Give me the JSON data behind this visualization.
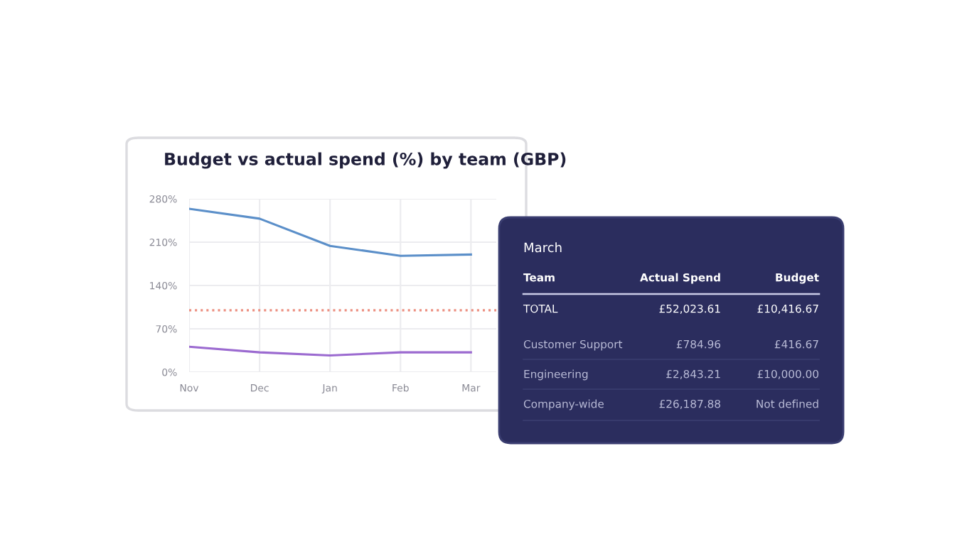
{
  "chart_data": [
    {
      "type": "line",
      "title": "Budget vs actual spend (%) by team (GBP)",
      "categories": [
        "Nov",
        "Dec",
        "Jan",
        "Feb",
        "Mar"
      ],
      "series": [
        {
          "color": "#5b8fc9",
          "values": [
            264,
            248,
            204,
            188,
            190
          ]
        },
        {
          "color": "#9b6ad0",
          "values": [
            41,
            32,
            27,
            32,
            32
          ]
        }
      ],
      "ylim": [
        0,
        280
      ],
      "yticks": [
        {
          "value": 0,
          "label": "0%"
        },
        {
          "value": 70,
          "label": "70%"
        },
        {
          "value": 140,
          "label": "140%"
        },
        {
          "value": 210,
          "label": "210%"
        },
        {
          "value": 280,
          "label": "280%"
        }
      ],
      "ref_lines": [
        {
          "axis": "y",
          "value": 100,
          "color": "#ec8f80",
          "line_style": "dotted"
        }
      ],
      "grid": true,
      "legend": false,
      "marker": "none",
      "line_style": "solid"
    },
    {
      "type": "other",
      "title": "March",
      "annotations": [
        "Team",
        "Actual Spend",
        "Budget",
        "TOTAL",
        "£52,023.61",
        "£10,416.67",
        "Customer Support",
        "£784.96",
        "£416.67",
        "Engineering",
        "£2,843.21",
        "£10,000.00",
        "Company-wide",
        "£26,187.88",
        "Not defined"
      ]
    }
  ]
}
